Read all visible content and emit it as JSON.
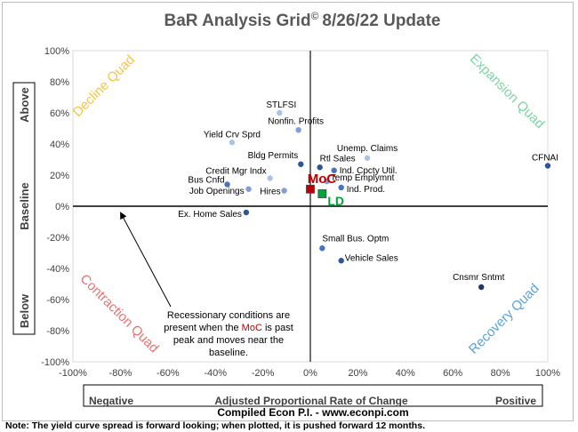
{
  "chart_data": {
    "type": "scatter",
    "title": "BaR Analysis Grid",
    "title_sup": "©",
    "title_date": "8/26/22 Update",
    "xlim": [
      -100,
      100
    ],
    "ylim": [
      -100,
      100
    ],
    "x_ticks": [
      "-100%",
      "-80%",
      "-60%",
      "-40%",
      "-20%",
      "0%",
      "20%",
      "40%",
      "60%",
      "80%",
      "100%"
    ],
    "y_ticks": [
      "100%",
      "80%",
      "60%",
      "40%",
      "20%",
      "0%",
      "-20%",
      "-40%",
      "-60%",
      "-80%",
      "-100%"
    ],
    "x_axis": {
      "negative": "Negative",
      "label": "Adjusted Proportional Rate of Change",
      "positive": "Positive"
    },
    "y_axis": {
      "above": "Above",
      "baseline": "Baseline",
      "below": "Below"
    },
    "quadrants": {
      "decline": {
        "label": "Decline Quad",
        "color": "#f4c542"
      },
      "expansion": {
        "label": "Expansion Quad",
        "color": "#7ed3a4"
      },
      "contraction": {
        "label": "Contraction Quad",
        "color": "#e57373"
      },
      "recovery": {
        "label": "Recovery Quad",
        "color": "#5ba3d6"
      }
    },
    "points": [
      {
        "name": "STLFSI",
        "x": -13,
        "y": 60,
        "color": "#a9c4e8"
      },
      {
        "name": "Nonfin. Profits",
        "x": -5,
        "y": 49,
        "color": "#7f9fd6"
      },
      {
        "name": "Yield Crv Sprd",
        "x": -33,
        "y": 41,
        "color": "#a9c4e8"
      },
      {
        "name": "Unemp. Claims",
        "x": 24,
        "y": 31,
        "color": "#a9c4e8"
      },
      {
        "name": "CFNAI",
        "x": 100,
        "y": 26,
        "color": "#2f5597"
      },
      {
        "name": "Bldg Permits",
        "x": -4,
        "y": 27,
        "color": "#2f5597"
      },
      {
        "name": "Rtl Sales",
        "x": 4,
        "y": 25,
        "color": "#2f5597"
      },
      {
        "name": "Ind. Cpcty Util.",
        "x": 10,
        "y": 23,
        "color": "#4472c4"
      },
      {
        "name": "Credit Mgr Indx",
        "x": -17,
        "y": 18,
        "color": "#a9c4e8"
      },
      {
        "name": "Temp Emplymnt",
        "x": 7,
        "y": 16,
        "color": "#7f9fd6"
      },
      {
        "name": "Bus Cnfd",
        "x": -35,
        "y": 14,
        "color": "#4472c4"
      },
      {
        "name": "Ind. Prod.",
        "x": 13,
        "y": 12,
        "color": "#4472c4"
      },
      {
        "name": "Job Openings",
        "x": -26,
        "y": 11,
        "color": "#7f9fd6"
      },
      {
        "name": "Hires",
        "x": -11,
        "y": 10,
        "color": "#7f9fd6"
      },
      {
        "name": "Ex. Home Sales",
        "x": -27,
        "y": -4,
        "color": "#2f5597"
      },
      {
        "name": "Small Bus. Optm",
        "x": 5,
        "y": -27,
        "color": "#4472c4"
      },
      {
        "name": "Vehicle Sales",
        "x": 13,
        "y": -35,
        "color": "#2f5597"
      },
      {
        "name": "Cnsmr Sntmt",
        "x": 72,
        "y": -52,
        "color": "#203864"
      }
    ],
    "markers": [
      {
        "name": "MoC",
        "x": 0,
        "y": 11,
        "color": "#c00000"
      },
      {
        "name": "LD",
        "x": 5,
        "y": 8,
        "color": "#00a33c"
      }
    ],
    "annotation": {
      "line1": "Recessionary conditions are",
      "line2_pre": "present when the ",
      "line2_hl": "MoC",
      "line2_post": " is past",
      "line3": "peak and moves near the",
      "line4": "baseline."
    },
    "credit": "Compiled Econ P.I. - www.econpi.com"
  },
  "footnote": "Note: The yield curve spread is forward looking; when plotted, it is pushed forward 12 months."
}
